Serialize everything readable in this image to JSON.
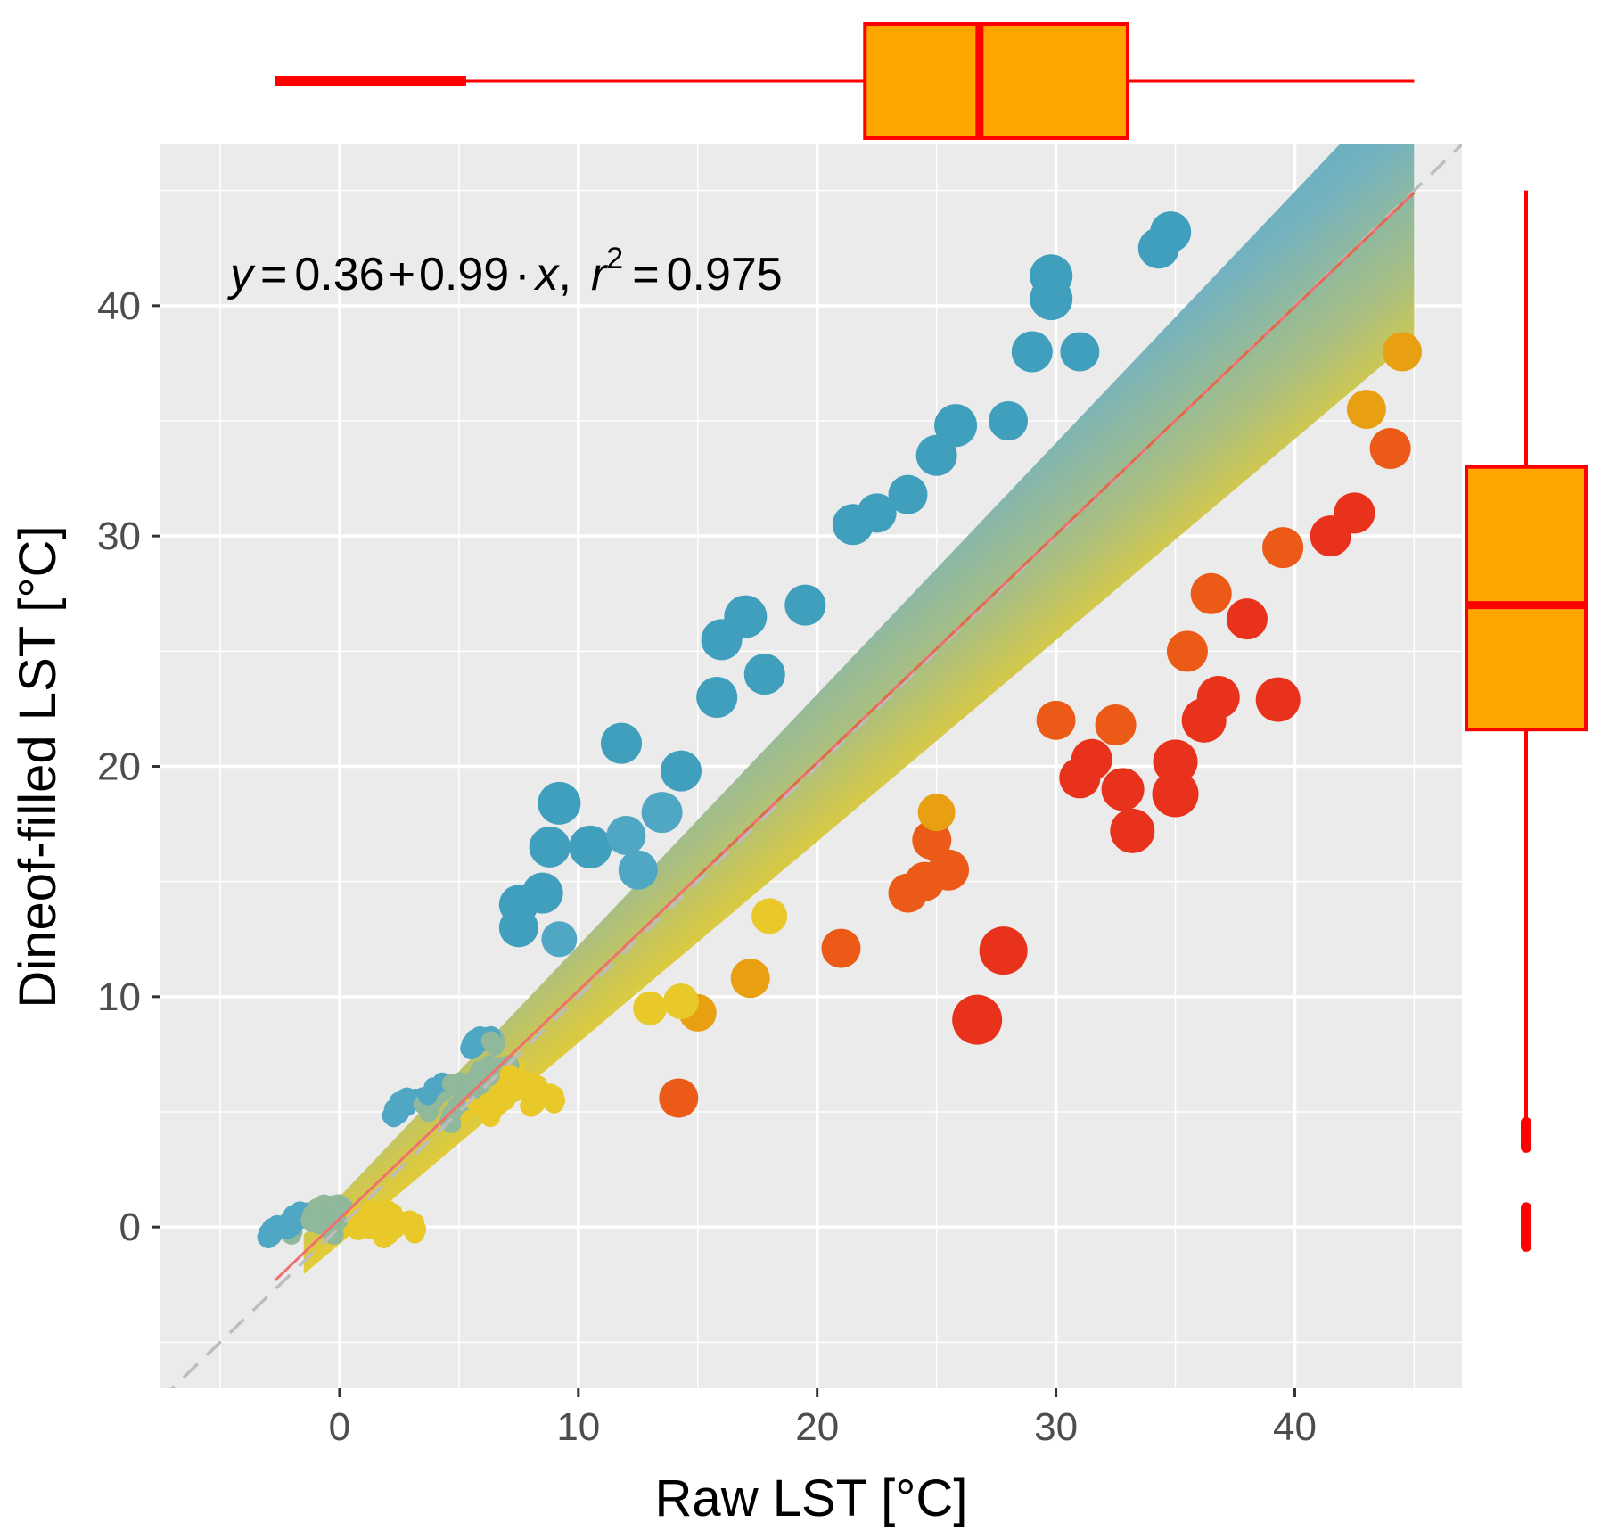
{
  "chart_data": {
    "type": "scatter",
    "subtype": "scatter with marginal boxplots",
    "xlabel": "Raw LST [°C]",
    "ylabel": "Dineof-filled LST [°C]",
    "xlim": [
      -7.5,
      47
    ],
    "ylim": [
      -7,
      47
    ],
    "x_ticks": [
      0,
      10,
      20,
      30,
      40
    ],
    "y_ticks": [
      0,
      10,
      20,
      30,
      40
    ],
    "x_tick_labels": [
      "0",
      "10",
      "20",
      "30",
      "40"
    ],
    "y_tick_labels": [
      "0",
      "10",
      "20",
      "30",
      "40"
    ],
    "grid": true,
    "annotation": {
      "y": "y",
      "equals_1": "=",
      "intercept": "0.36",
      "plus": "+",
      "slope": "0.99",
      "dot": "·",
      "x": "x",
      "comma": ",",
      "r": "r",
      "r_exp": "2",
      "equals_2": "=",
      "r2_value": "0.975"
    },
    "regression": {
      "intercept": 0.36,
      "slope": 0.99,
      "r2": 0.975,
      "x_range": [
        -2.7,
        45
      ],
      "color": "#f07070"
    },
    "identity_line": {
      "slope": 1,
      "intercept": 0,
      "color": "#bdbdbd"
    },
    "colors": {
      "panel_bg": "#ebebeb",
      "grid": "#ffffff",
      "below_line": "#e9c82a",
      "above_line": "#4fa7c3",
      "mid": "#8fb99a",
      "outlier_hot": "#e8321c",
      "box_fill": "#ffa500",
      "box_stroke": "#ff0000"
    },
    "band": {
      "x_range": [
        -1.5,
        45
      ],
      "half_width_start": 0.8,
      "half_width_end": 5.5
    },
    "clusters": [
      {
        "x": -2.5,
        "y": -0.2,
        "r": 0.6
      },
      {
        "x": -1.5,
        "y": 0.3,
        "r": 0.8
      },
      {
        "x": -0.5,
        "y": 0.6,
        "r": 0.8
      },
      {
        "x": 0.5,
        "y": 0.1,
        "r": 0.9
      },
      {
        "x": 1.5,
        "y": 0.3,
        "r": 0.9
      },
      {
        "x": 2.5,
        "y": -0.1,
        "r": 0.8
      },
      {
        "x": 3,
        "y": 5.2,
        "r": 0.9
      },
      {
        "x": 4.5,
        "y": 5.8,
        "r": 1.0
      },
      {
        "x": 5.5,
        "y": 5.0,
        "r": 1.0
      },
      {
        "x": 6.5,
        "y": 6.5,
        "r": 1.1
      },
      {
        "x": 7.5,
        "y": 5.8,
        "r": 1.0
      },
      {
        "x": 6,
        "y": 8.0,
        "r": 0.6
      },
      {
        "x": 8.5,
        "y": 5.5,
        "r": 0.6
      }
    ],
    "points": [
      {
        "x": 9.2,
        "y": 18.4,
        "s": 1.0
      },
      {
        "x": 8.8,
        "y": 16.5,
        "s": 0.9
      },
      {
        "x": 10.5,
        "y": 16.5,
        "s": 1.0
      },
      {
        "x": 11.8,
        "y": 21.0,
        "s": 0.9
      },
      {
        "x": 7.5,
        "y": 14.0,
        "s": 0.8
      },
      {
        "x": 8.5,
        "y": 14.5,
        "s": 0.9
      },
      {
        "x": 7.5,
        "y": 13.0,
        "s": 0.8
      },
      {
        "x": 9.2,
        "y": 12.5,
        "s": 0.6
      },
      {
        "x": 12.0,
        "y": 17.0,
        "s": 0.8
      },
      {
        "x": 13.5,
        "y": 18.0,
        "s": 0.9
      },
      {
        "x": 14.3,
        "y": 19.8,
        "s": 0.9
      },
      {
        "x": 12.5,
        "y": 15.5,
        "s": 0.8
      },
      {
        "x": 17.0,
        "y": 26.5,
        "s": 1.0
      },
      {
        "x": 16.0,
        "y": 25.5,
        "s": 0.9
      },
      {
        "x": 15.8,
        "y": 23.0,
        "s": 0.9
      },
      {
        "x": 17.8,
        "y": 24.0,
        "s": 0.9
      },
      {
        "x": 19.5,
        "y": 27.0,
        "s": 0.9
      },
      {
        "x": 21.5,
        "y": 30.5,
        "s": 0.9
      },
      {
        "x": 22.5,
        "y": 31.0,
        "s": 0.8
      },
      {
        "x": 23.8,
        "y": 31.8,
        "s": 0.8
      },
      {
        "x": 25.8,
        "y": 34.8,
        "s": 1.0
      },
      {
        "x": 25.0,
        "y": 33.5,
        "s": 0.9
      },
      {
        "x": 29.8,
        "y": 41.3,
        "s": 1.0
      },
      {
        "x": 29.8,
        "y": 40.3,
        "s": 1.0
      },
      {
        "x": 29.0,
        "y": 38.0,
        "s": 0.9
      },
      {
        "x": 34.8,
        "y": 43.2,
        "s": 0.9
      },
      {
        "x": 34.3,
        "y": 42.5,
        "s": 0.9
      },
      {
        "x": 28.0,
        "y": 35.0,
        "s": 0.8
      },
      {
        "x": 31.0,
        "y": 38.0,
        "s": 0.8
      },
      {
        "x": 21.0,
        "y": 12.1,
        "s": 0.8
      },
      {
        "x": 17.2,
        "y": 10.8,
        "s": 0.8
      },
      {
        "x": 14.2,
        "y": 5.6,
        "s": 0.8
      },
      {
        "x": 15.0,
        "y": 9.3,
        "s": 0.7
      },
      {
        "x": 14.3,
        "y": 9.8,
        "s": 0.6
      },
      {
        "x": 13.0,
        "y": 9.5,
        "s": 0.5
      },
      {
        "x": 18.0,
        "y": 13.5,
        "s": 0.6
      },
      {
        "x": 23.8,
        "y": 14.5,
        "s": 0.8
      },
      {
        "x": 24.5,
        "y": 15.0,
        "s": 0.8
      },
      {
        "x": 25.5,
        "y": 15.5,
        "s": 0.9
      },
      {
        "x": 24.8,
        "y": 16.8,
        "s": 0.8
      },
      {
        "x": 25.0,
        "y": 18.0,
        "s": 0.7
      },
      {
        "x": 30.0,
        "y": 22.0,
        "s": 0.8
      },
      {
        "x": 31.0,
        "y": 19.5,
        "s": 0.9
      },
      {
        "x": 31.5,
        "y": 20.3,
        "s": 0.9
      },
      {
        "x": 32.5,
        "y": 21.8,
        "s": 0.9
      },
      {
        "x": 32.8,
        "y": 19.0,
        "s": 1.0
      },
      {
        "x": 33.2,
        "y": 17.2,
        "s": 1.1
      },
      {
        "x": 35.0,
        "y": 20.2,
        "s": 1.1
      },
      {
        "x": 35.0,
        "y": 18.8,
        "s": 1.2
      },
      {
        "x": 36.2,
        "y": 22.0,
        "s": 1.1
      },
      {
        "x": 36.8,
        "y": 23.0,
        "s": 1.0
      },
      {
        "x": 39.3,
        "y": 22.9,
        "s": 1.1
      },
      {
        "x": 35.5,
        "y": 25.0,
        "s": 0.9
      },
      {
        "x": 38.0,
        "y": 26.4,
        "s": 0.9
      },
      {
        "x": 36.5,
        "y": 27.5,
        "s": 0.9
      },
      {
        "x": 39.5,
        "y": 29.5,
        "s": 0.9
      },
      {
        "x": 41.5,
        "y": 30.0,
        "s": 0.9
      },
      {
        "x": 42.5,
        "y": 31.0,
        "s": 0.9
      },
      {
        "x": 44.0,
        "y": 33.8,
        "s": 0.9
      },
      {
        "x": 43.0,
        "y": 35.5,
        "s": 0.8
      },
      {
        "x": 44.5,
        "y": 38.0,
        "s": 0.8
      },
      {
        "x": 27.8,
        "y": 12.0,
        "s": 1.3
      },
      {
        "x": 26.7,
        "y": 9.0,
        "s": 1.4
      }
    ],
    "marginal_x_boxplot": {
      "whisker_low": -2.7,
      "q1": 22,
      "median": 26.8,
      "q3": 33,
      "whisker_high": 45,
      "thick_segment": [
        -2.7,
        5.3
      ],
      "fill": "#ffa500",
      "stroke": "#ff0000"
    },
    "marginal_y_boxplot": {
      "whisker_low": 4.5,
      "q1": 21.6,
      "median": 27,
      "q3": 33,
      "whisker_high": 45,
      "outliers": [
        4.0,
        0.3,
        -0.3
      ],
      "fill": "#ffa500",
      "stroke": "#ff0000"
    }
  }
}
